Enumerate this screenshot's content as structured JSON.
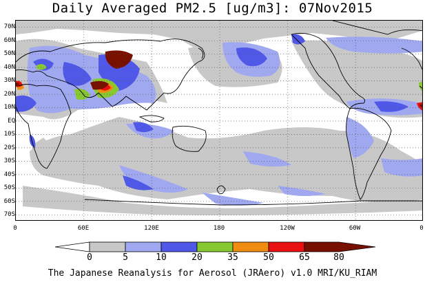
{
  "title": "Daily Averaged PM2.5 [ug/m3]: 07Nov2015",
  "credit": "The Japanese Reanalysis for Aerosol (JRAero) v1.0 MRI/KU_RIAM",
  "lat_labels": [
    "70N",
    "60N",
    "50N",
    "40N",
    "30N",
    "20N",
    "10N",
    "EQ",
    "10S",
    "20S",
    "30S",
    "40S",
    "50S",
    "60S",
    "70S"
  ],
  "lon_labels": [
    "0",
    "60E",
    "120E",
    "180",
    "120W",
    "60W",
    "0"
  ],
  "legend": {
    "ticks": [
      "0",
      "5",
      "10",
      "20",
      "35",
      "50",
      "65",
      "80"
    ],
    "colors": [
      "#ffffff",
      "#c8c8c8",
      "#a0a8f0",
      "#5058e8",
      "#88c830",
      "#f08c10",
      "#e81010",
      "#781000"
    ]
  },
  "chart_data": {
    "type": "heatmap",
    "title": "Daily Averaged PM2.5 [ug/m3]: 07Nov2015",
    "levels": [
      0,
      5,
      10,
      20,
      35,
      50,
      65,
      80
    ],
    "x_range": [
      0,
      360
    ],
    "y_range": [
      -75,
      75
    ]
  }
}
